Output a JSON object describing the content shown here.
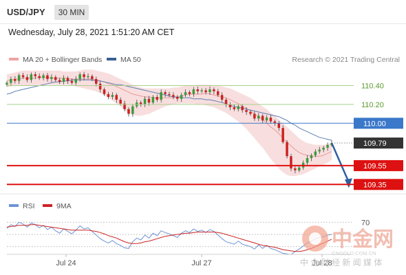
{
  "header": {
    "symbol": "USD/JPY",
    "timeframe": "30 MIN",
    "datetime": "Wednesday, July 28, 2021 1:51:20 AM CET"
  },
  "legend": {
    "ma20": "MA 20 + Bollinger Bands",
    "ma50": "MA 50",
    "rsi": "RSI",
    "rsi_ma": "9MA"
  },
  "credit": "Research © 2021 Trading Central",
  "watermark": {
    "brand": "中金网",
    "domain": "CNGOLD.COM.CN",
    "tagline": "中 金 财 经 新 闻 媒 体"
  },
  "colors": {
    "resistance": "#a8d08d",
    "pivot": "#3a78c9",
    "support": "#dd1111",
    "price": "#333333",
    "bollinger_fill": "#f6d3d3",
    "ma50": "#5b7fb5",
    "candle_up": "#3c9a3c",
    "candle_down": "#cc2222",
    "rsi_line": "#6d93d6",
    "rsi_ma_line": "#cc2222",
    "forecast_arrow": "#2f5f9e"
  },
  "chart_data": [
    {
      "type": "candlestick",
      "title": "USD/JPY 30 MIN",
      "x_ticks": [
        "Jul 24",
        "Jul 27",
        "Jul 28"
      ],
      "ylim": [
        109.25,
        110.55
      ],
      "levels": [
        {
          "label": "110.40",
          "value": 110.4,
          "kind": "resistance"
        },
        {
          "label": "110.20",
          "value": 110.2,
          "kind": "resistance"
        },
        {
          "label": "110.00",
          "value": 110.0,
          "kind": "pivot"
        },
        {
          "label": "109.79",
          "value": 109.79,
          "kind": "price"
        },
        {
          "label": "109.55",
          "value": 109.55,
          "kind": "support"
        },
        {
          "label": "109.35",
          "value": 109.35,
          "kind": "support"
        }
      ],
      "close_series": [
        110.43,
        110.47,
        110.45,
        110.51,
        110.49,
        110.46,
        110.52,
        110.5,
        110.48,
        110.51,
        110.47,
        110.49,
        110.46,
        110.44,
        110.48,
        110.45,
        110.43,
        110.47,
        110.52,
        110.49,
        110.5,
        110.47,
        110.42,
        110.36,
        110.31,
        110.28,
        110.3,
        110.25,
        110.21,
        110.15,
        110.1,
        110.18,
        110.22,
        110.2,
        110.26,
        110.22,
        110.28,
        110.25,
        110.33,
        110.31,
        110.3,
        110.28,
        110.26,
        110.3,
        110.33,
        110.31,
        110.36,
        110.34,
        110.35,
        110.33,
        110.36,
        110.34,
        110.3,
        110.25,
        110.2,
        110.17,
        110.15,
        110.18,
        110.14,
        110.12,
        110.1,
        110.05,
        110.08,
        110.03,
        110.06,
        110.02,
        110.0,
        109.95,
        109.8,
        109.65,
        109.52,
        109.5,
        109.53,
        109.58,
        109.63,
        109.66,
        109.7,
        109.72,
        109.74,
        109.77,
        109.79
      ],
      "ma20": [
        110.45,
        110.46,
        110.47,
        110.47,
        110.48,
        110.48,
        110.48,
        110.48,
        110.49,
        110.49,
        110.49,
        110.48,
        110.48,
        110.48,
        110.48,
        110.48,
        110.47,
        110.47,
        110.47,
        110.47,
        110.47,
        110.47,
        110.46,
        110.45,
        110.44,
        110.42,
        110.41,
        110.39,
        110.37,
        110.35,
        110.33,
        110.31,
        110.3,
        110.29,
        110.28,
        110.28,
        110.27,
        110.27,
        110.27,
        110.27,
        110.27,
        110.27,
        110.28,
        110.29,
        110.3,
        110.31,
        110.31,
        110.31,
        110.31,
        110.32,
        110.31,
        110.3,
        110.29,
        110.28,
        110.27,
        110.25,
        110.23,
        110.21,
        110.18,
        110.16,
        110.13,
        110.1,
        110.07,
        110.04,
        110.0,
        109.96,
        109.93,
        109.89,
        109.84,
        109.8,
        109.76,
        109.72,
        109.69,
        109.67,
        109.66,
        109.65,
        109.65,
        109.65,
        109.66,
        109.68,
        109.7
      ],
      "bollinger_upper": [
        110.52,
        110.53,
        110.54,
        110.55,
        110.56,
        110.56,
        110.56,
        110.56,
        110.56,
        110.56,
        110.56,
        110.56,
        110.56,
        110.56,
        110.55,
        110.55,
        110.55,
        110.55,
        110.56,
        110.57,
        110.57,
        110.57,
        110.56,
        110.55,
        110.54,
        110.53,
        110.51,
        110.49,
        110.47,
        110.45,
        110.43,
        110.41,
        110.39,
        110.38,
        110.37,
        110.37,
        110.37,
        110.37,
        110.37,
        110.37,
        110.37,
        110.38,
        110.38,
        110.39,
        110.4,
        110.4,
        110.4,
        110.41,
        110.41,
        110.41,
        110.41,
        110.4,
        110.4,
        110.39,
        110.38,
        110.37,
        110.35,
        110.33,
        110.31,
        110.29,
        110.27,
        110.24,
        110.21,
        110.18,
        110.15,
        110.11,
        110.08,
        110.04,
        110.0,
        109.96,
        109.92,
        109.88,
        109.84,
        109.81,
        109.79,
        109.78,
        109.77,
        109.77,
        109.77,
        109.78,
        109.79
      ],
      "bollinger_lower": [
        110.38,
        110.39,
        110.4,
        110.4,
        110.4,
        110.4,
        110.4,
        110.4,
        110.41,
        110.41,
        110.41,
        110.41,
        110.41,
        110.41,
        110.41,
        110.41,
        110.4,
        110.39,
        110.38,
        110.37,
        110.36,
        110.35,
        110.34,
        110.32,
        110.3,
        110.27,
        110.24,
        110.21,
        110.18,
        110.14,
        110.11,
        110.09,
        110.08,
        110.08,
        110.09,
        110.1,
        110.12,
        110.14,
        110.16,
        110.18,
        110.19,
        110.2,
        110.21,
        110.21,
        110.21,
        110.21,
        110.21,
        110.2,
        110.2,
        110.19,
        110.18,
        110.17,
        110.15,
        110.13,
        110.11,
        110.08,
        110.05,
        110.02,
        109.98,
        109.94,
        109.89,
        109.84,
        109.79,
        109.74,
        109.68,
        109.62,
        109.57,
        109.52,
        109.48,
        109.45,
        109.44,
        109.44,
        109.45,
        109.46,
        109.48,
        109.5,
        109.52,
        109.54,
        109.56,
        109.58,
        109.61
      ],
      "ma50": [
        110.31,
        110.32,
        110.34,
        110.35,
        110.36,
        110.37,
        110.38,
        110.39,
        110.4,
        110.41,
        110.42,
        110.43,
        110.44,
        110.44,
        110.45,
        110.45,
        110.46,
        110.46,
        110.46,
        110.46,
        110.46,
        110.46,
        110.45,
        110.45,
        110.44,
        110.43,
        110.42,
        110.41,
        110.41,
        110.4,
        110.39,
        110.38,
        110.37,
        110.36,
        110.35,
        110.34,
        110.33,
        110.32,
        110.31,
        110.3,
        110.29,
        110.28,
        110.28,
        110.27,
        110.27,
        110.27,
        110.26,
        110.26,
        110.26,
        110.25,
        110.25,
        110.24,
        110.23,
        110.22,
        110.21,
        110.19,
        110.18,
        110.17,
        110.16,
        110.15,
        110.14,
        110.13,
        110.12,
        110.11,
        110.1,
        110.09,
        110.08,
        110.07,
        110.05,
        110.03,
        110.0,
        109.98,
        109.95,
        109.93,
        109.91,
        109.89,
        109.87,
        109.85,
        109.84,
        109.83,
        109.82
      ]
    },
    {
      "type": "line",
      "title": "RSI",
      "reference_levels": [
        70,
        50,
        30
      ],
      "ylim": [
        15,
        85
      ],
      "series": [
        {
          "name": "RSI",
          "values": [
            60,
            66,
            63,
            70,
            67,
            62,
            69,
            66,
            61,
            65,
            58,
            62,
            56,
            52,
            59,
            55,
            51,
            57,
            64,
            59,
            61,
            55,
            49,
            43,
            39,
            36,
            40,
            35,
            32,
            28,
            27,
            38,
            44,
            41,
            49,
            44,
            52,
            48,
            56,
            53,
            51,
            48,
            45,
            52,
            56,
            53,
            59,
            55,
            57,
            53,
            58,
            55,
            49,
            43,
            38,
            36,
            34,
            39,
            34,
            32,
            30,
            26,
            33,
            27,
            32,
            27,
            25,
            22,
            19,
            18,
            17,
            22,
            26,
            31,
            36,
            39,
            43,
            45,
            46,
            49,
            50
          ]
        },
        {
          "name": "9MA",
          "values": [
            62,
            63,
            64,
            65,
            65,
            65,
            66,
            66,
            65,
            64,
            63,
            62,
            61,
            60,
            59,
            58,
            57,
            57,
            57,
            57,
            57,
            56,
            55,
            53,
            51,
            48,
            46,
            44,
            41,
            38,
            36,
            35,
            35,
            36,
            38,
            39,
            41,
            43,
            45,
            47,
            48,
            49,
            50,
            51,
            52,
            52,
            53,
            54,
            54,
            54,
            54,
            54,
            53,
            52,
            50,
            48,
            46,
            44,
            42,
            40,
            38,
            36,
            34,
            32,
            31,
            30,
            29,
            27,
            25,
            24,
            23,
            22,
            22,
            23,
            25,
            27,
            30,
            33,
            36,
            39,
            42
          ]
        }
      ]
    }
  ]
}
